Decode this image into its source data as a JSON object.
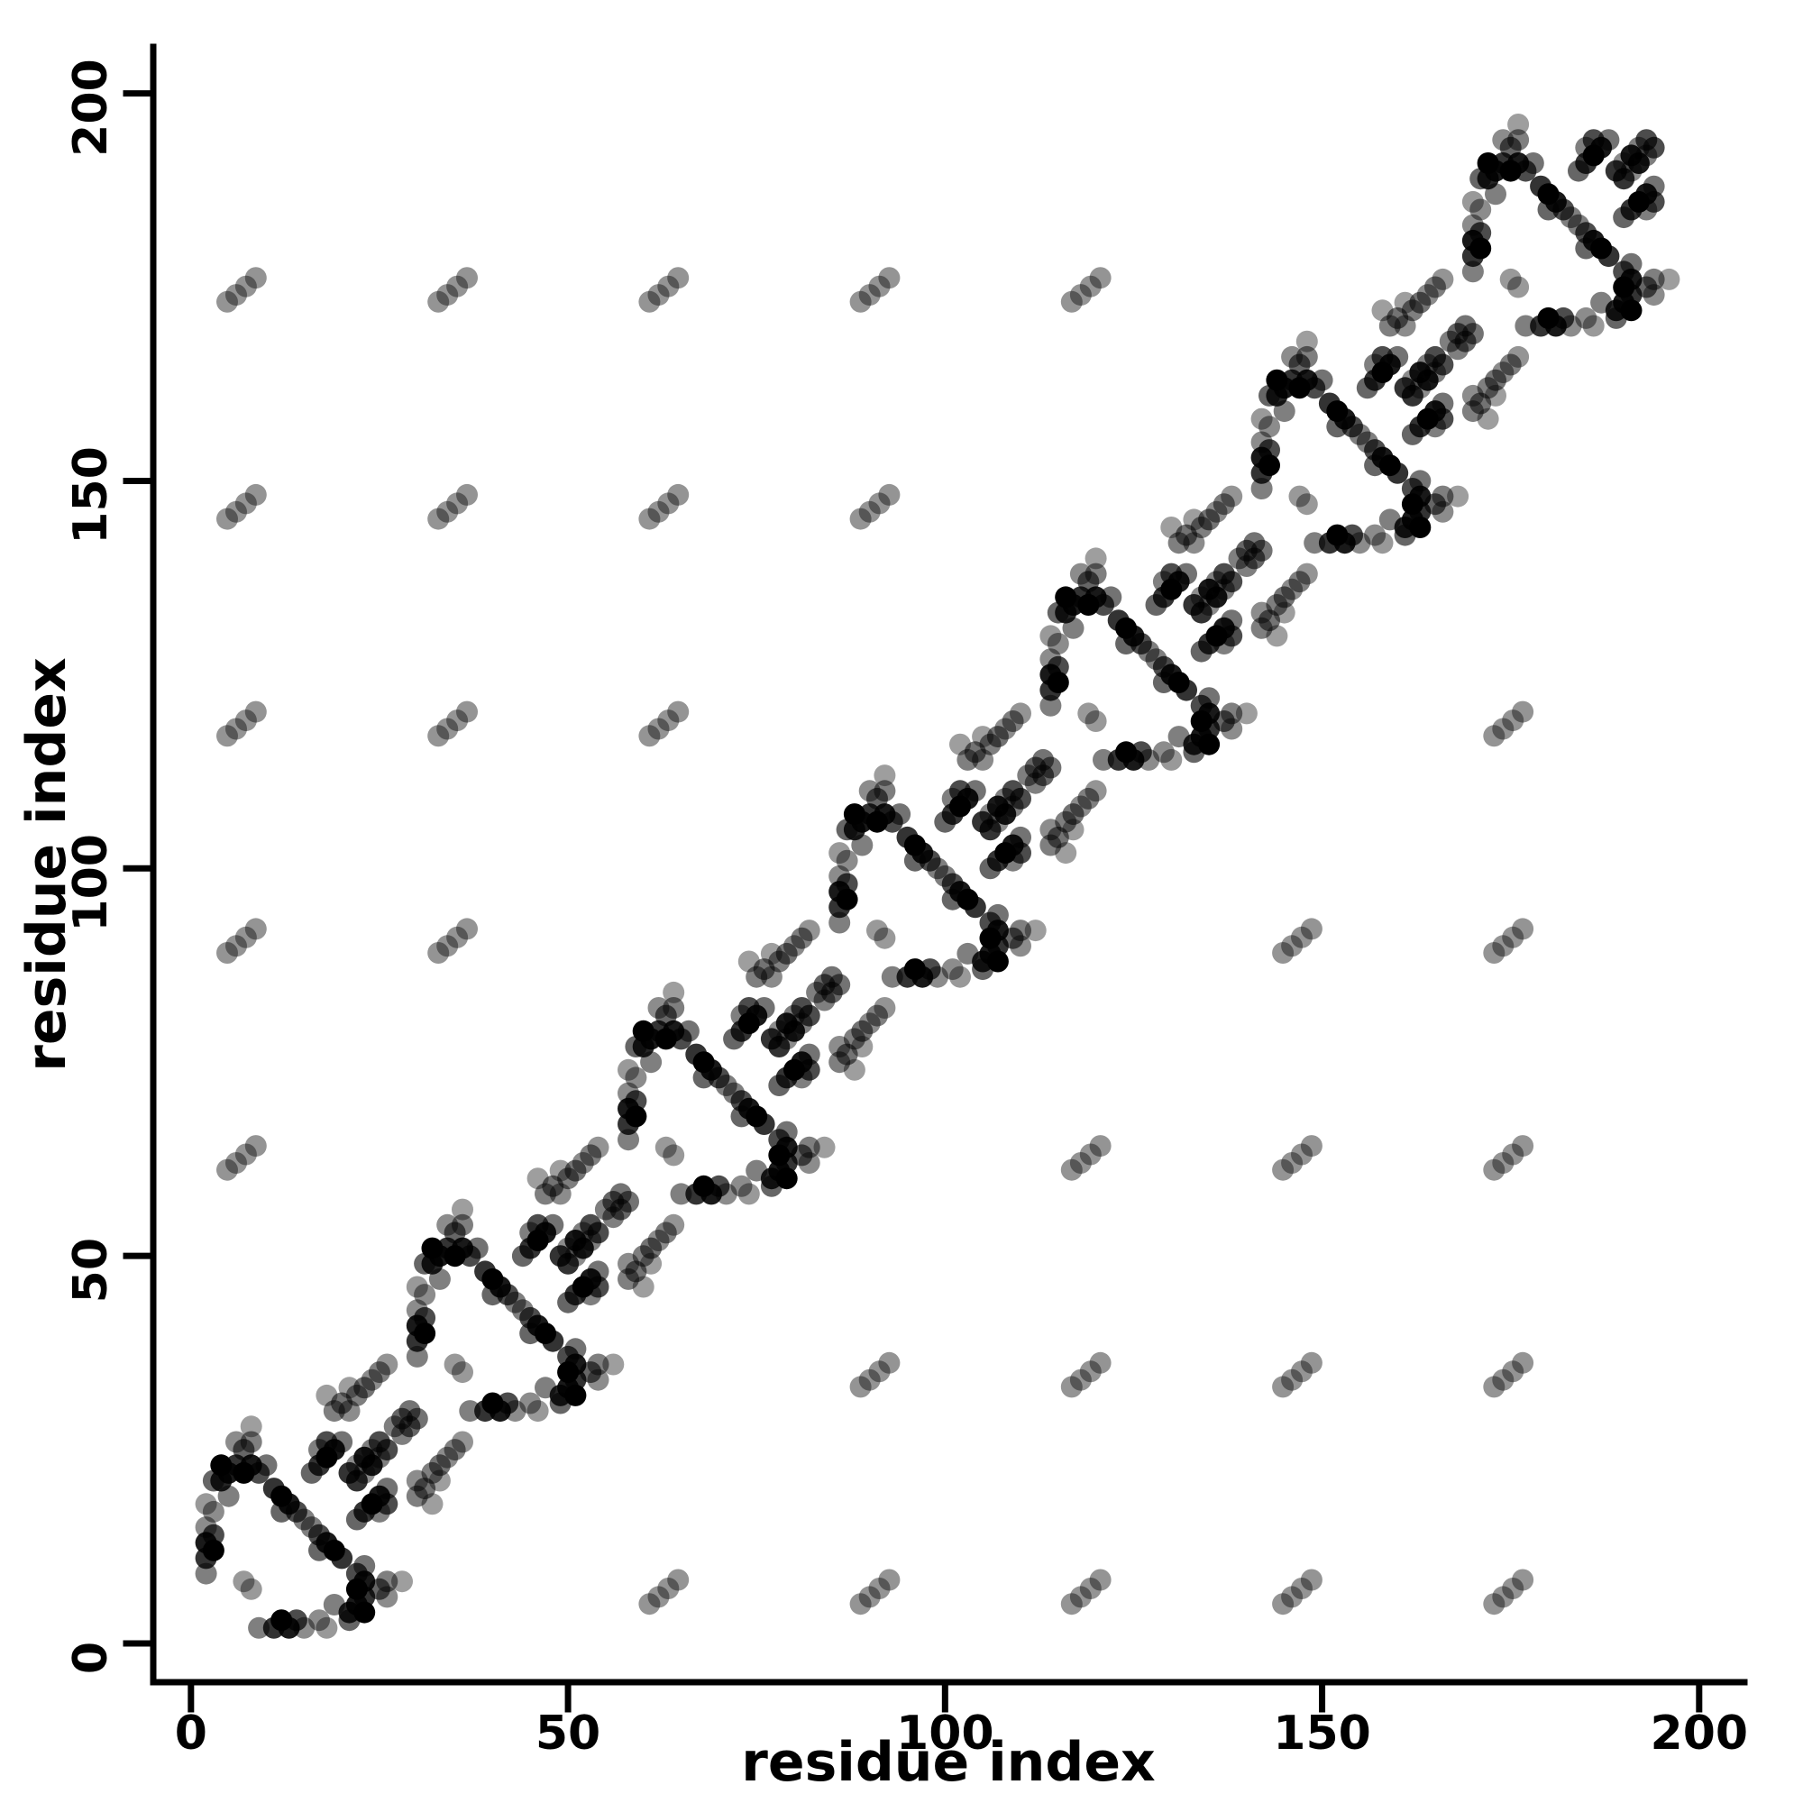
{
  "figure": {
    "background_color": "#ffffff",
    "axis_color": "#000000",
    "marker_color": "#000000"
  },
  "chart_data": {
    "type": "scatter",
    "title": "",
    "xlabel": "residue index",
    "ylabel": "residue index",
    "xlim": [
      -5,
      206
    ],
    "ylim": [
      -5,
      206
    ],
    "xticks": [
      0,
      50,
      100,
      150,
      200
    ],
    "yticks": [
      0,
      50,
      100,
      150,
      200
    ],
    "grid": false,
    "legend": "none",
    "marker": {
      "shape": "circle",
      "radius_px": 12,
      "color": "#000000"
    },
    "pattern": {
      "description": "protein residue-residue contact map, symmetric about the diagonal, 7 tandem repeats of period 28 with dark intra-repeat contact motifs, grey inter-repeat bridge contacts, and faint periodic long-range contact clusters",
      "period": 28,
      "repeat_offsets": [
        2,
        30,
        58,
        86,
        114,
        142,
        170
      ],
      "symmetric_about_diagonal": true
    },
    "motif_points": [
      [
        0,
        7,
        0.5
      ],
      [
        0,
        9,
        0.8
      ],
      [
        1,
        10,
        1.0
      ],
      [
        0,
        11,
        0.9
      ],
      [
        1,
        12,
        0.7
      ],
      [
        0,
        13,
        0.45
      ],
      [
        1,
        15,
        0.45
      ],
      [
        0,
        16,
        0.4
      ],
      [
        3,
        17,
        0.5
      ],
      [
        1,
        19,
        0.6
      ],
      [
        2,
        19,
        0.85
      ],
      [
        2,
        21,
        1.0
      ],
      [
        3,
        20,
        0.9
      ],
      [
        4,
        21,
        0.8
      ],
      [
        5,
        20,
        1.0
      ],
      [
        6,
        21,
        0.9
      ],
      [
        7,
        20,
        0.7
      ],
      [
        8,
        21,
        0.55
      ],
      [
        4,
        24,
        0.45
      ],
      [
        5,
        23,
        0.6
      ],
      [
        6,
        24,
        0.5
      ],
      [
        6,
        26,
        0.38
      ],
      [
        9,
        18,
        0.8
      ],
      [
        10,
        17,
        1.0
      ],
      [
        11,
        16,
        0.9
      ],
      [
        10,
        15,
        0.6
      ],
      [
        12,
        15,
        0.7
      ],
      [
        13,
        14,
        0.5
      ],
      [
        14,
        20,
        0.6
      ],
      [
        15,
        21,
        0.8
      ],
      [
        15,
        23,
        0.5
      ],
      [
        16,
        22,
        1.0
      ],
      [
        17,
        23,
        0.9
      ],
      [
        16,
        24,
        0.7
      ],
      [
        18,
        24,
        0.55
      ],
      [
        5,
        6,
        0.4
      ],
      [
        19,
        20,
        0.8
      ],
      [
        20,
        21,
        0.45
      ],
      [
        21,
        22,
        0.9
      ],
      [
        22,
        23,
        0.5
      ],
      [
        23,
        24,
        0.7
      ]
    ],
    "bridge_points": [
      [
        17,
        28,
        0.5
      ],
      [
        18,
        29,
        0.55
      ],
      [
        19,
        28,
        0.45
      ],
      [
        20,
        30,
        0.5
      ],
      [
        21,
        31,
        0.55
      ],
      [
        22,
        32,
        0.45
      ],
      [
        19,
        31,
        0.38
      ],
      [
        23,
        33,
        0.5
      ],
      [
        24,
        34,
        0.42
      ],
      [
        16,
        30,
        0.38
      ],
      [
        25,
        26,
        0.5
      ],
      [
        26,
        27,
        0.6
      ],
      [
        27,
        28,
        0.55
      ]
    ],
    "long_range": {
      "anchor": 4,
      "cluster_offsets": [
        [
          0,
          0
        ],
        [
          1.3,
          1.1
        ],
        [
          -1.2,
          -0.9
        ],
        [
          2.6,
          2.2
        ]
      ],
      "alpha": 0.42,
      "min_repeat_separation": 2
    }
  }
}
